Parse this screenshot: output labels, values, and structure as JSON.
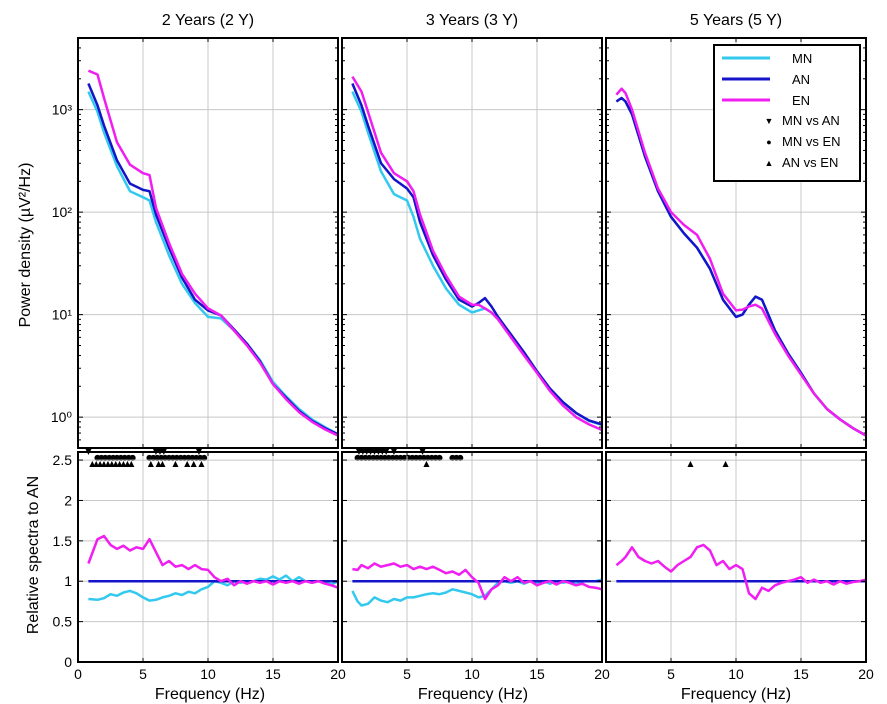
{
  "figure": {
    "y_label_top": "Power density (µV²/Hz)",
    "y_label_bottom": "Relative spectra to AN",
    "x_label": "Frequency (Hz)"
  },
  "colors": {
    "MN": "#33c9ef",
    "AN": "#1414c8",
    "EN": "#f01ef0",
    "grid": "#c8c8c8"
  },
  "legend": {
    "placement": "top-right of third panel",
    "lines": [
      {
        "key": "MN",
        "label": "MN"
      },
      {
        "key": "AN",
        "label": "AN"
      },
      {
        "key": "EN",
        "label": "EN"
      }
    ],
    "markers": [
      {
        "symbol": "▼",
        "label": "MN vs AN"
      },
      {
        "symbol": "●",
        "label": "MN vs EN"
      },
      {
        "symbol": "▲",
        "label": "AN vs EN"
      }
    ]
  },
  "chart_data": [
    {
      "panel": "power",
      "title": "2 Years (2 Y)",
      "type": "line",
      "yscale": "log",
      "xlim": [
        0,
        20
      ],
      "ylim": [
        0.5,
        5000
      ],
      "yticks": [
        1,
        10,
        100,
        1000
      ],
      "ytick_labels": [
        "10⁰",
        "10¹",
        "10²",
        "10³"
      ],
      "x": [
        0.8,
        1.5,
        2.0,
        3.0,
        4.0,
        5.0,
        5.5,
        6.0,
        7.0,
        8.0,
        9.0,
        10.0,
        11.0,
        12.0,
        13.0,
        14.0,
        15.0,
        16.0,
        17.0,
        18.0,
        19.0,
        20.0
      ],
      "series": [
        {
          "name": "MN",
          "values": [
            1500,
            950,
            600,
            280,
            160,
            140,
            130,
            80,
            38,
            20,
            13,
            9.5,
            9.2,
            7.0,
            5.2,
            3.6,
            2.2,
            1.6,
            1.2,
            0.95,
            0.8,
            0.68
          ]
        },
        {
          "name": "AN",
          "values": [
            1800,
            1100,
            700,
            320,
            190,
            165,
            160,
            95,
            45,
            23,
            14,
            11,
            9.8,
            7.2,
            5.2,
            3.5,
            2.1,
            1.55,
            1.15,
            0.92,
            0.78,
            0.68
          ]
        },
        {
          "name": "EN",
          "values": [
            2400,
            2200,
            1300,
            480,
            290,
            240,
            230,
            110,
            50,
            25,
            16,
            11.5,
            9.8,
            7.0,
            5.0,
            3.4,
            2.1,
            1.5,
            1.12,
            0.9,
            0.76,
            0.66
          ]
        }
      ],
      "significance": [
        {
          "type": "MN vs AN",
          "freqs": [
            0.8,
            6.0,
            6.3,
            6.6,
            9.3
          ]
        },
        {
          "type": "MN vs EN",
          "freqs": [
            1.5,
            1.8,
            2.1,
            2.4,
            2.7,
            3.0,
            3.3,
            3.6,
            3.9,
            4.2,
            5.5,
            5.8,
            6.1,
            6.4,
            6.7,
            7.0,
            7.3,
            7.6,
            7.9,
            8.2,
            8.5,
            8.8,
            9.1,
            9.4,
            9.7
          ]
        },
        {
          "type": "AN vs EN",
          "freqs": [
            1.1,
            1.4,
            1.7,
            2.0,
            2.3,
            2.6,
            2.9,
            3.2,
            3.5,
            3.8,
            4.1,
            5.6,
            6.2,
            6.5,
            7.5,
            8.4,
            8.9,
            9.5
          ]
        }
      ]
    },
    {
      "panel": "power",
      "title": "3 Years (3 Y)",
      "type": "line",
      "yscale": "log",
      "xlim": [
        0,
        20
      ],
      "ylim": [
        0.5,
        5000
      ],
      "x": [
        0.8,
        1.5,
        2.0,
        3.0,
        4.0,
        5.0,
        5.5,
        6.0,
        7.0,
        8.0,
        9.0,
        10.0,
        10.5,
        11.0,
        11.5,
        12.0,
        13.0,
        14.0,
        15.0,
        16.0,
        17.0,
        18.0,
        19.0,
        20.0
      ],
      "series": [
        {
          "name": "MN",
          "values": [
            1500,
            950,
            600,
            250,
            150,
            130,
            90,
            55,
            30,
            18,
            12.5,
            10.5,
            11.0,
            11.5,
            10.5,
            9.0,
            6.2,
            4.2,
            2.8,
            1.9,
            1.4,
            1.1,
            0.92,
            0.84
          ]
        },
        {
          "name": "AN",
          "values": [
            1800,
            1100,
            700,
            300,
            210,
            170,
            140,
            80,
            38,
            22,
            14,
            12,
            13,
            14.5,
            12.0,
            9.5,
            6.4,
            4.3,
            2.8,
            1.9,
            1.4,
            1.1,
            0.93,
            0.85
          ]
        },
        {
          "name": "EN",
          "values": [
            2100,
            1500,
            950,
            380,
            240,
            200,
            160,
            95,
            42,
            24,
            15,
            12.5,
            12.5,
            11.5,
            10.5,
            9.0,
            6.0,
            4.0,
            2.7,
            1.8,
            1.3,
            1.0,
            0.85,
            0.75
          ]
        }
      ],
      "significance": [
        {
          "type": "MN vs AN",
          "freqs": [
            1.3,
            1.6,
            1.9,
            2.2,
            2.5,
            2.8,
            3.1,
            3.4,
            4.0,
            6.2
          ]
        },
        {
          "type": "MN vs EN",
          "freqs": [
            1.2,
            1.5,
            1.8,
            2.1,
            2.4,
            2.7,
            3.0,
            3.3,
            3.6,
            3.9,
            4.2,
            4.5,
            4.8,
            5.1,
            5.4,
            5.7,
            6.0,
            6.3,
            6.6,
            6.9,
            7.2,
            7.5,
            8.5,
            8.8,
            9.1
          ]
        },
        {
          "type": "AN vs EN",
          "freqs": [
            6.5
          ]
        }
      ]
    },
    {
      "panel": "power",
      "title": "5 Years (5 Y)",
      "type": "line",
      "yscale": "log",
      "xlim": [
        0,
        20
      ],
      "ylim": [
        0.5,
        5000
      ],
      "x": [
        0.8,
        1.2,
        1.5,
        2.0,
        3.0,
        4.0,
        5.0,
        6.0,
        7.0,
        8.0,
        9.0,
        10.0,
        10.5,
        11.0,
        11.5,
        12.0,
        13.0,
        14.0,
        15.0,
        16.0,
        17.0,
        18.0,
        19.0,
        20.0
      ],
      "series": [
        {
          "name": "MN",
          "values": [
            1200,
            1300,
            1200,
            900,
            350,
            160,
            90,
            62,
            45,
            28,
            14,
            9.5,
            10,
            12.5,
            15,
            14,
            7,
            4.2,
            2.7,
            1.7,
            1.2,
            0.95,
            0.78,
            0.66
          ]
        },
        {
          "name": "AN",
          "values": [
            1200,
            1300,
            1200,
            900,
            350,
            160,
            90,
            62,
            45,
            28,
            14,
            9.5,
            10,
            12.5,
            15,
            14,
            7,
            4.2,
            2.7,
            1.7,
            1.2,
            0.95,
            0.78,
            0.66
          ]
        },
        {
          "name": "EN",
          "values": [
            1400,
            1600,
            1450,
            1000,
            380,
            170,
            100,
            75,
            60,
            35,
            16,
            11,
            11.2,
            12,
            12.5,
            11.5,
            6.5,
            4.0,
            2.6,
            1.7,
            1.2,
            0.95,
            0.78,
            0.66
          ]
        }
      ],
      "significance": [
        {
          "type": "AN vs EN",
          "freqs": [
            6.5,
            9.2
          ]
        }
      ]
    },
    {
      "panel": "relative",
      "type": "line",
      "xlim": [
        0,
        20
      ],
      "ylim": [
        0,
        2.6
      ],
      "yticks": [
        0,
        0.5,
        1,
        1.5,
        2,
        2.5
      ],
      "ytick_labels": [
        "0",
        "0.5",
        "1",
        "1.5",
        "2",
        "2.5"
      ],
      "xticks": [
        0,
        5,
        10,
        15,
        20
      ],
      "xtick_labels": [
        "0",
        "5",
        "10",
        "15",
        "20"
      ],
      "x": [
        0.8,
        1.5,
        2.0,
        2.5,
        3.0,
        3.5,
        4.0,
        4.5,
        5.0,
        5.5,
        6.0,
        6.5,
        7.0,
        7.5,
        8.0,
        8.5,
        9.0,
        9.5,
        10.0,
        10.5,
        11.0,
        11.5,
        12.0,
        12.5,
        13.0,
        13.5,
        14.0,
        14.5,
        15.0,
        15.5,
        16.0,
        16.5,
        17.0,
        17.5,
        18.0,
        18.5,
        19.0,
        19.5,
        20.0
      ],
      "series": [
        {
          "name": "MN",
          "values": [
            0.78,
            0.77,
            0.79,
            0.84,
            0.82,
            0.86,
            0.88,
            0.85,
            0.8,
            0.76,
            0.77,
            0.8,
            0.82,
            0.85,
            0.83,
            0.87,
            0.85,
            0.9,
            0.93,
            1.0,
            0.98,
            0.95,
            1.0,
            0.98,
            1.0,
            1.0,
            1.03,
            1.02,
            1.06,
            1.02,
            1.07,
            1.0,
            1.05,
            1.0,
            0.98,
            1.0,
            0.98,
            0.96,
            1.0
          ]
        },
        {
          "name": "AN",
          "values": [
            1,
            1,
            1,
            1,
            1,
            1,
            1,
            1,
            1,
            1,
            1,
            1,
            1,
            1,
            1,
            1,
            1,
            1,
            1,
            1,
            1,
            1,
            1,
            1,
            1,
            1,
            1,
            1,
            1,
            1,
            1,
            1,
            1,
            1,
            1,
            1,
            1,
            1,
            1
          ]
        },
        {
          "name": "EN",
          "values": [
            1.22,
            1.52,
            1.56,
            1.45,
            1.4,
            1.44,
            1.38,
            1.42,
            1.4,
            1.52,
            1.36,
            1.2,
            1.25,
            1.18,
            1.2,
            1.15,
            1.2,
            1.15,
            1.14,
            1.05,
            1.0,
            1.03,
            0.95,
            1.0,
            0.97,
            1.0,
            0.98,
            1.0,
            0.96,
            1.0,
            0.98,
            1.0,
            0.97,
            1.0,
            0.98,
            1.0,
            0.97,
            0.95,
            0.92
          ]
        }
      ]
    },
    {
      "panel": "relative",
      "type": "line",
      "xlim": [
        0,
        20
      ],
      "ylim": [
        0,
        2.6
      ],
      "xticks": [
        0,
        5,
        10,
        15,
        20
      ],
      "xtick_labels": [
        "0",
        "5",
        "10",
        "15",
        "20"
      ],
      "x": [
        0.8,
        1.2,
        1.5,
        2.0,
        2.5,
        3.0,
        3.5,
        4.0,
        4.5,
        5.0,
        5.5,
        6.0,
        6.5,
        7.0,
        7.5,
        8.0,
        8.5,
        9.0,
        9.5,
        10.0,
        10.5,
        11.0,
        11.5,
        12.0,
        12.5,
        13.0,
        13.5,
        14.0,
        14.5,
        15.0,
        15.5,
        16.0,
        16.5,
        17.0,
        17.5,
        18.0,
        18.5,
        19.0,
        19.5,
        20.0
      ],
      "series": [
        {
          "name": "MN",
          "values": [
            0.88,
            0.75,
            0.7,
            0.72,
            0.8,
            0.76,
            0.74,
            0.78,
            0.76,
            0.8,
            0.8,
            0.82,
            0.84,
            0.85,
            0.84,
            0.86,
            0.9,
            0.88,
            0.86,
            0.84,
            0.8,
            0.82,
            0.9,
            0.98,
            1.0,
            0.98,
            1.0,
            0.97,
            1.0,
            0.98,
            1.0,
            0.97,
            1.0,
            0.98,
            1.0,
            0.96,
            1.0,
            1.0,
            1.0,
            1.02
          ]
        },
        {
          "name": "AN",
          "values": [
            1,
            1,
            1,
            1,
            1,
            1,
            1,
            1,
            1,
            1,
            1,
            1,
            1,
            1,
            1,
            1,
            1,
            1,
            1,
            1,
            1,
            1,
            1,
            1,
            1,
            1,
            1,
            1,
            1,
            1,
            1,
            1,
            1,
            1,
            1,
            1,
            1,
            1,
            1,
            1
          ]
        },
        {
          "name": "EN",
          "values": [
            1.15,
            1.14,
            1.2,
            1.16,
            1.22,
            1.18,
            1.2,
            1.22,
            1.18,
            1.2,
            1.15,
            1.18,
            1.15,
            1.18,
            1.14,
            1.1,
            1.12,
            1.08,
            1.14,
            1.05,
            0.98,
            0.78,
            0.9,
            0.95,
            1.05,
            1.0,
            1.05,
            0.98,
            1.0,
            0.95,
            0.98,
            1.0,
            0.96,
            1.0,
            0.98,
            0.95,
            0.97,
            0.93,
            0.92,
            0.9
          ]
        }
      ]
    },
    {
      "panel": "relative",
      "type": "line",
      "xlim": [
        0,
        20
      ],
      "ylim": [
        0,
        2.6
      ],
      "xticks": [
        0,
        5,
        10,
        15,
        20
      ],
      "xtick_labels": [
        "0",
        "5",
        "10",
        "15",
        "20"
      ],
      "x": [
        0.8,
        1.2,
        1.5,
        2.0,
        2.5,
        3.0,
        3.5,
        4.0,
        4.5,
        5.0,
        5.5,
        6.0,
        6.5,
        7.0,
        7.5,
        8.0,
        8.5,
        9.0,
        9.5,
        10.0,
        10.5,
        11.0,
        11.5,
        12.0,
        12.5,
        13.0,
        13.5,
        14.0,
        14.5,
        15.0,
        15.5,
        16.0,
        16.5,
        17.0,
        17.5,
        18.0,
        18.5,
        19.0,
        19.5,
        20.0
      ],
      "series": [
        {
          "name": "MN",
          "values": [
            1,
            1,
            1,
            1,
            1,
            1,
            1,
            1,
            1,
            1,
            1,
            1,
            1,
            1,
            1,
            1,
            1,
            1,
            1,
            1,
            1,
            1,
            1,
            1,
            1,
            1,
            1,
            1,
            1,
            1,
            1,
            1,
            1,
            1,
            1,
            1,
            1,
            1,
            1,
            1
          ]
        },
        {
          "name": "AN",
          "values": [
            1,
            1,
            1,
            1,
            1,
            1,
            1,
            1,
            1,
            1,
            1,
            1,
            1,
            1,
            1,
            1,
            1,
            1,
            1,
            1,
            1,
            1,
            1,
            1,
            1,
            1,
            1,
            1,
            1,
            1,
            1,
            1,
            1,
            1,
            1,
            1,
            1,
            1,
            1,
            1
          ]
        },
        {
          "name": "EN",
          "values": [
            1.2,
            1.25,
            1.3,
            1.42,
            1.3,
            1.25,
            1.22,
            1.25,
            1.18,
            1.12,
            1.2,
            1.25,
            1.3,
            1.42,
            1.45,
            1.38,
            1.2,
            1.25,
            1.15,
            1.2,
            1.15,
            0.85,
            0.78,
            0.92,
            0.88,
            0.95,
            0.98,
            1.0,
            1.02,
            1.05,
            0.98,
            1.02,
            0.98,
            1.0,
            0.96,
            1.0,
            0.97,
            0.99,
            1.0,
            1.02
          ]
        }
      ]
    }
  ]
}
